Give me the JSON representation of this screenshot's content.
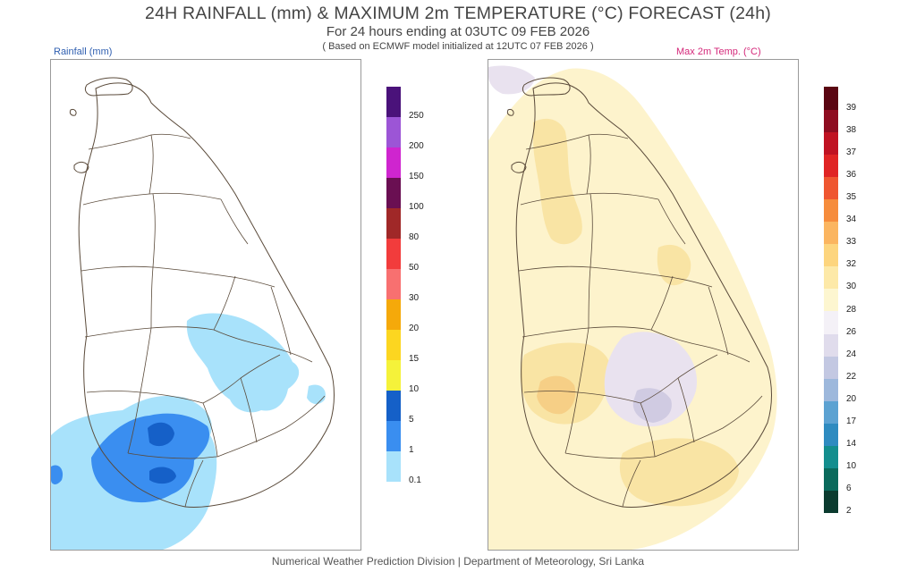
{
  "header": {
    "title": "24H RAINFALL (mm) & MAXIMUM 2m TEMPERATURE (°C) FORECAST (24h)",
    "subtitle": "For 24 hours ending at 03UTC 09 FEB 2026",
    "note": "( Based on ECMWF model initialized at 12UTC 07 FEB 2026 )"
  },
  "rain_panel": {
    "label": "Rainfall (mm)",
    "legend": {
      "labels": [
        "0.1",
        "1",
        "5",
        "10",
        "15",
        "20",
        "30",
        "50",
        "80",
        "100",
        "150",
        "200",
        "250"
      ],
      "colors": [
        "#a8e2fb",
        "#3a8ef0",
        "#1560c8",
        "#f5f23a",
        "#fcd620",
        "#f5a90a",
        "#f87070",
        "#f23c3c",
        "#a02828",
        "#6a0f52",
        "#cf25cf",
        "#9c55d6",
        "#4a127a"
      ]
    },
    "shading_colors": {
      "light": "#a8e2fb",
      "medium": "#3a8ef0",
      "dark": "#1560c8"
    }
  },
  "temp_panel": {
    "label": "Max 2m Temp. (°C)",
    "legend": {
      "labels": [
        "2",
        "6",
        "10",
        "14",
        "17",
        "20",
        "22",
        "24",
        "26",
        "28",
        "30",
        "32",
        "33",
        "34",
        "35",
        "36",
        "37",
        "38",
        "39"
      ],
      "colors": [
        "#0b3b2f",
        "#0a6a5c",
        "#138e8e",
        "#2e8bc0",
        "#5ca2d2",
        "#9db8dc",
        "#c3c8e2",
        "#e0dcec",
        "#f4f1f7",
        "#fdf6d0",
        "#fde9a8",
        "#fdd57e",
        "#fbb560",
        "#f68c3c",
        "#ef5630",
        "#e02424",
        "#c01222",
        "#8e0c20",
        "#5a0612"
      ]
    },
    "shading_colors": {
      "base": "#fdf3cc",
      "warm": "#f9e4a4",
      "hot": "#f6cf86",
      "cool": "#e9e2ef",
      "cooler": "#d0cbe2"
    }
  },
  "footer": "Numerical Weather Prediction Division | Department of Meteorology, Sri Lanka"
}
